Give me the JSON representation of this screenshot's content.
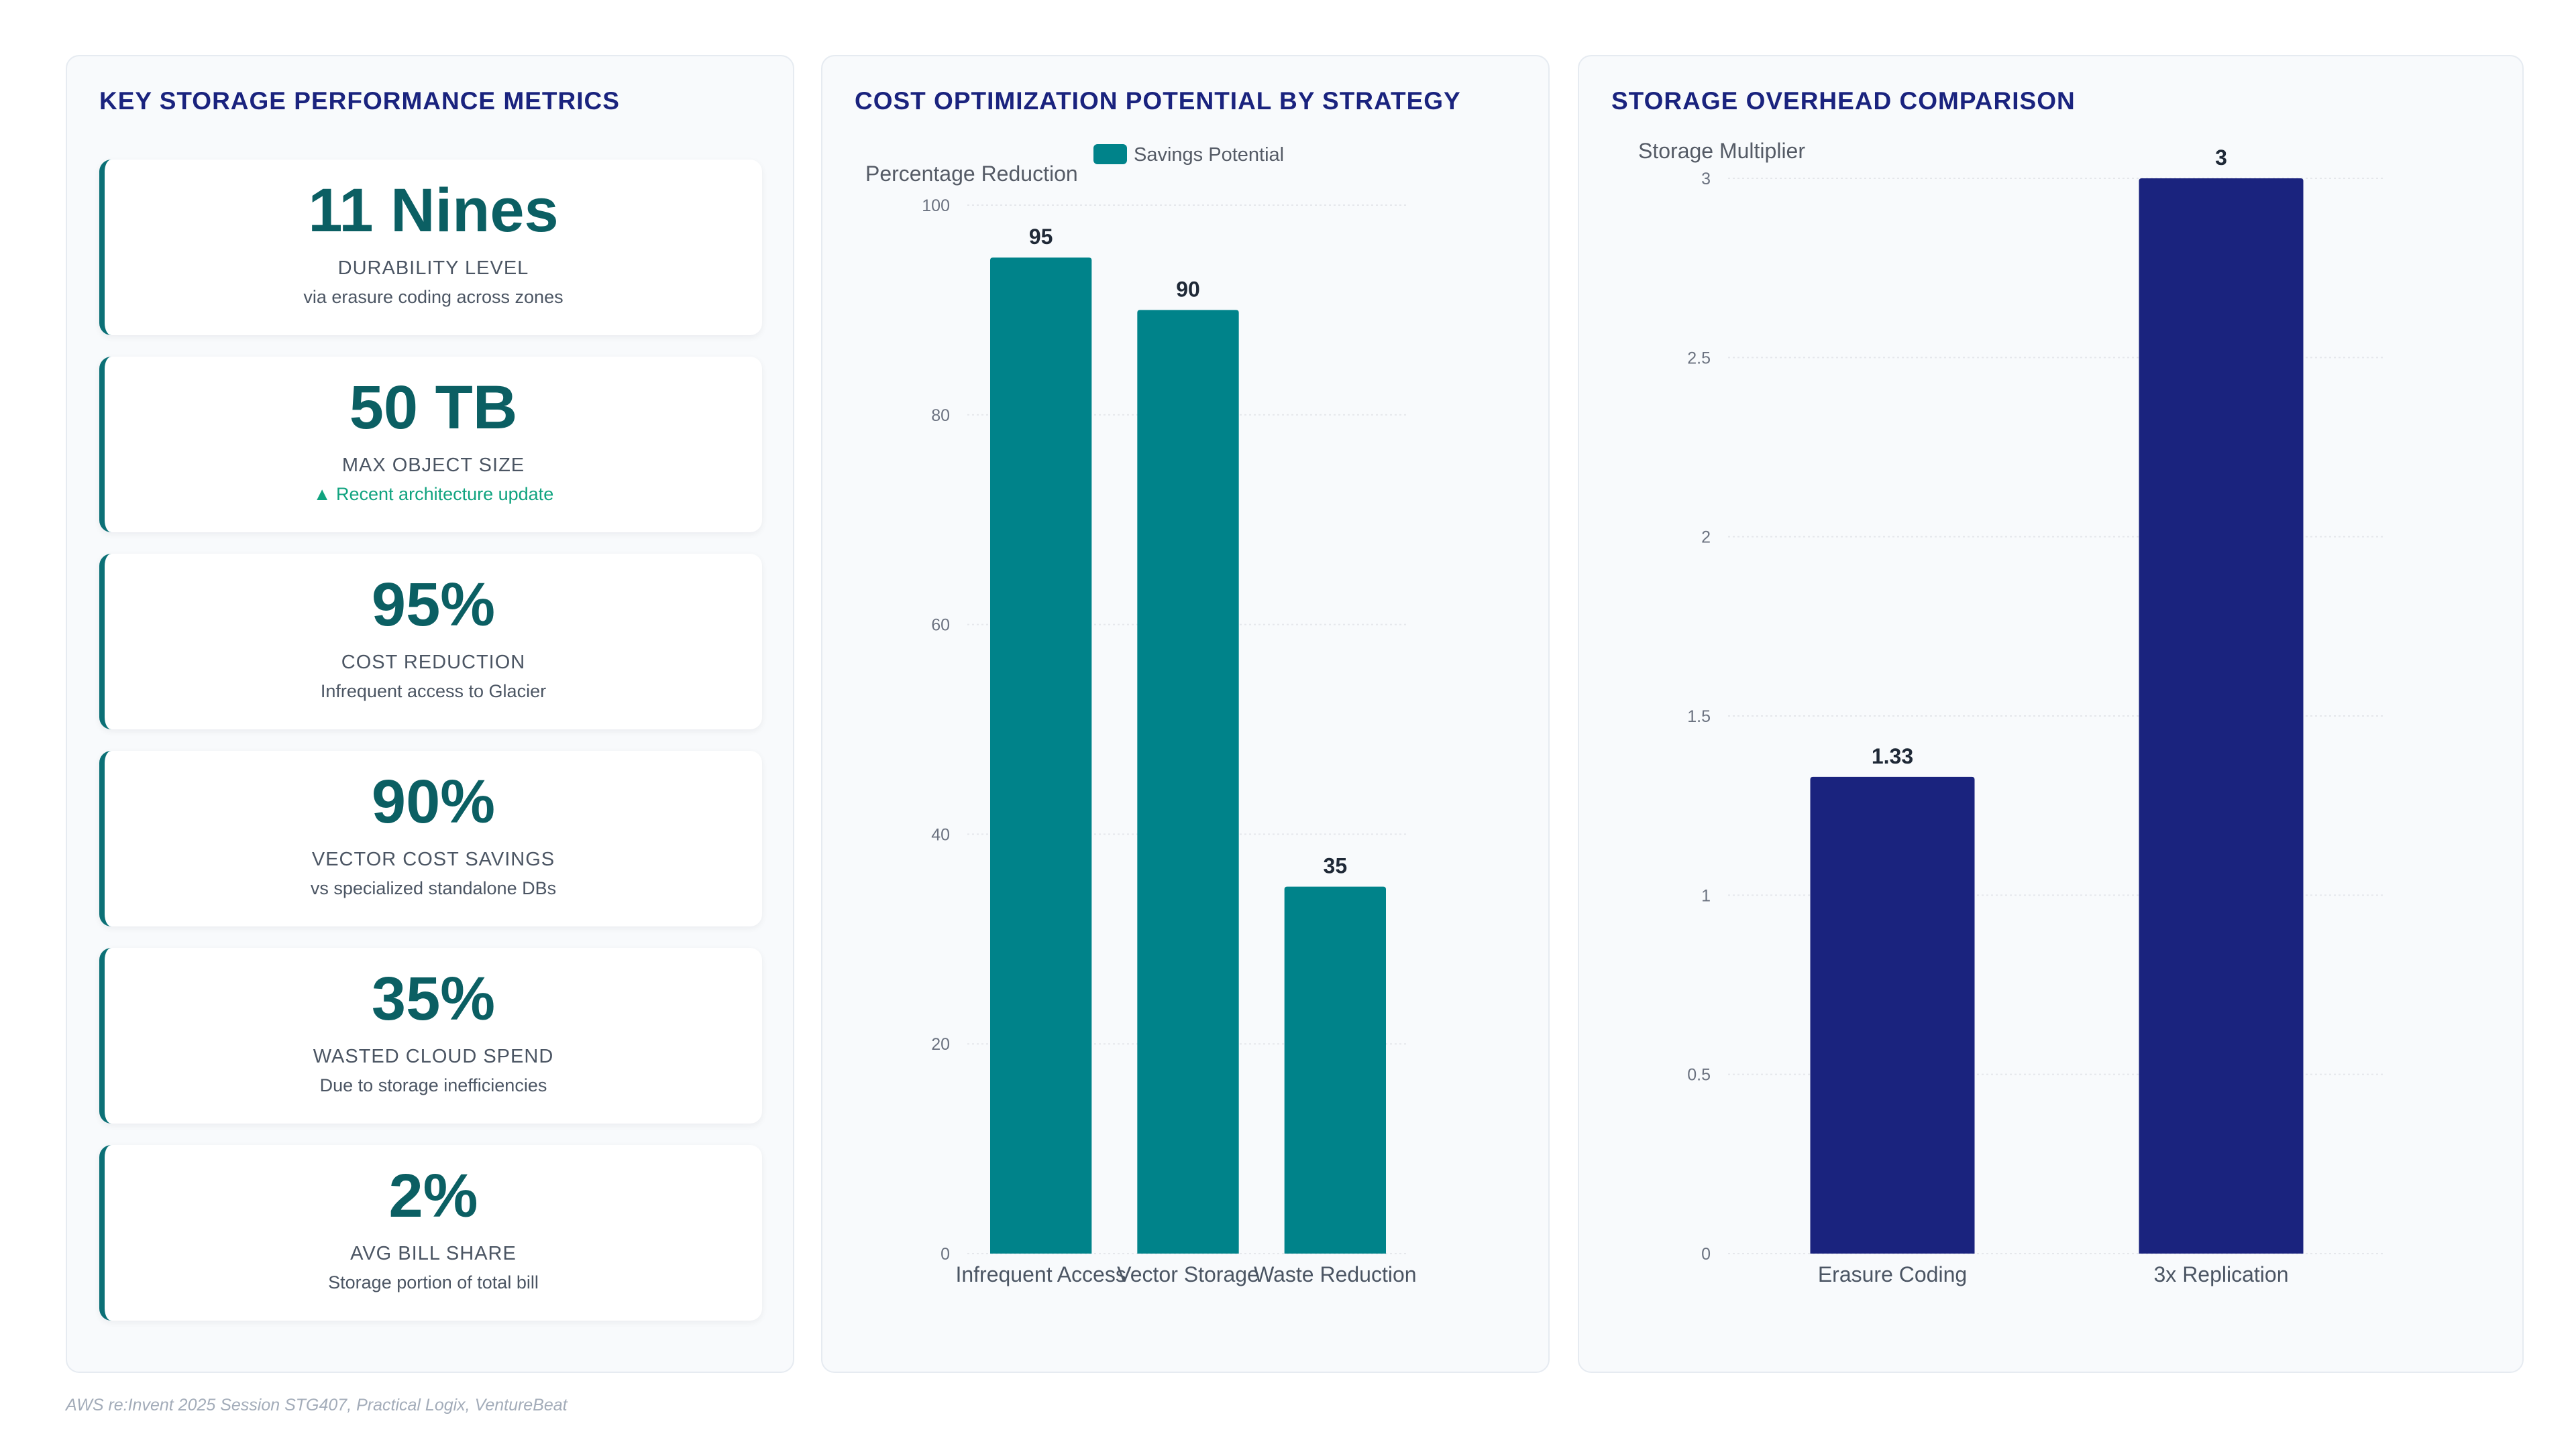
{
  "metrics_panel": {
    "title": "KEY STORAGE PERFORMANCE METRICS",
    "cards": [
      {
        "value": "11 Nines",
        "label": "DURABILITY LEVEL",
        "sub": "via erasure coding across zones",
        "sub_positive": false
      },
      {
        "value": "50 TB",
        "label": "MAX OBJECT SIZE",
        "sub": "▲ Recent architecture update",
        "sub_positive": true
      },
      {
        "value": "95%",
        "label": "COST REDUCTION",
        "sub": "Infrequent access to Glacier",
        "sub_positive": false
      },
      {
        "value": "90%",
        "label": "VECTOR COST SAVINGS",
        "sub": "vs specialized standalone DBs",
        "sub_positive": false
      },
      {
        "value": "35%",
        "label": "WASTED CLOUD SPEND",
        "sub": "Due to storage inefficiencies",
        "sub_positive": false
      },
      {
        "value": "2%",
        "label": "AVG BILL SHARE",
        "sub": "Storage portion of total bill",
        "sub_positive": false
      }
    ]
  },
  "cost_panel": {
    "title": "COST OPTIMIZATION POTENTIAL BY STRATEGY"
  },
  "overhead_panel": {
    "title": "STORAGE OVERHEAD COMPARISON"
  },
  "source": "AWS re:Invent 2025 Session STG407, Practical Logix, VentureBeat",
  "colors": {
    "teal": "#00838a",
    "navy": "#1a237e",
    "accent_green": "#10a37f"
  },
  "chart_data": [
    {
      "type": "bar",
      "title": "COST OPTIMIZATION POTENTIAL BY STRATEGY",
      "categories": [
        "Infrequent Access",
        "Vector Storage",
        "Waste Reduction"
      ],
      "series": [
        {
          "name": "Savings Potential",
          "values": [
            95,
            90,
            35
          ],
          "color": "#00838a"
        }
      ],
      "xlabel": "",
      "ylabel": "Percentage Reduction",
      "ylim": [
        0,
        100
      ],
      "yticks": [
        0,
        20,
        40,
        60,
        80,
        100
      ],
      "legend": "top-center",
      "grid": true,
      "data_labels": true
    },
    {
      "type": "bar",
      "title": "STORAGE OVERHEAD COMPARISON",
      "categories": [
        "Erasure Coding",
        "3x Replication"
      ],
      "series": [
        {
          "values": [
            1.33,
            3
          ],
          "color": "#1a237e"
        }
      ],
      "xlabel": "",
      "ylabel": "Storage Multiplier",
      "ylim": [
        0,
        3
      ],
      "yticks": [
        0,
        0.5,
        1,
        1.5,
        2,
        2.5,
        3
      ],
      "legend": "none",
      "grid": true,
      "data_labels": true
    }
  ]
}
